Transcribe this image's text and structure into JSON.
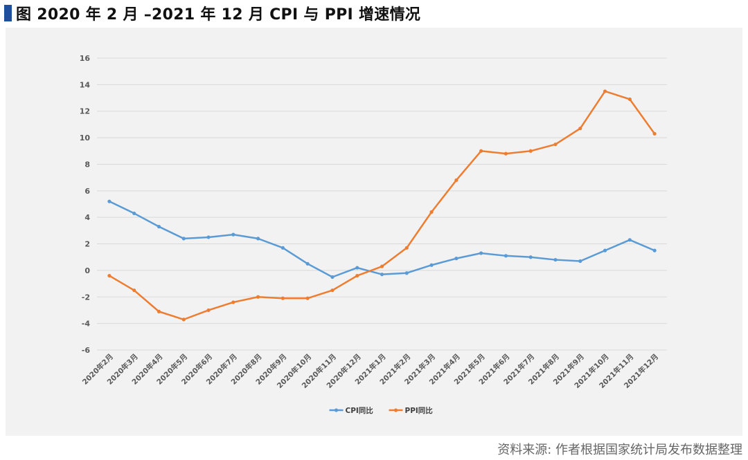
{
  "title": "图 2020 年 2 月 –2021 年 12 月 CPI 与 PPI 增速情况",
  "source": "资料来源: 作者根据国家统计局发布数据整理",
  "colors": {
    "title_bar": "#1f4e9c",
    "cpi": "#5b9bd5",
    "ppi": "#ed7d31",
    "grid": "#d9d9d9",
    "panel": "#f2f2f2"
  },
  "chart_data": {
    "type": "line",
    "title": "",
    "xlabel": "",
    "ylabel": "",
    "ylim": [
      -6,
      16
    ],
    "yticks": [
      -6,
      -4,
      -2,
      0,
      2,
      4,
      6,
      8,
      10,
      12,
      14,
      16
    ],
    "grid": true,
    "legend_position": "bottom",
    "categories": [
      "2020年2月",
      "2020年3月",
      "2020年4月",
      "2020年5月",
      "2020年6月",
      "2020年7月",
      "2020年8月",
      "2020年9月",
      "2020年10月",
      "2020年11月",
      "2020年12月",
      "2021年1月",
      "2021年2月",
      "2021年3月",
      "2021年4月",
      "2021年5月",
      "2021年6月",
      "2021年7月",
      "2021年8月",
      "2021年9月",
      "2021年10月",
      "2021年11月",
      "2021年12月"
    ],
    "series": [
      {
        "name": "CPI同比",
        "color": "#5b9bd5",
        "values": [
          5.2,
          4.3,
          3.3,
          2.4,
          2.5,
          2.7,
          2.4,
          1.7,
          0.5,
          -0.5,
          0.2,
          -0.3,
          -0.2,
          0.4,
          0.9,
          1.3,
          1.1,
          1.0,
          0.8,
          0.7,
          1.5,
          2.3,
          1.5
        ]
      },
      {
        "name": "PPI同比",
        "color": "#ed7d31",
        "values": [
          -0.4,
          -1.5,
          -3.1,
          -3.7,
          -3.0,
          -2.4,
          -2.0,
          -2.1,
          -2.1,
          -1.5,
          -0.4,
          0.3,
          1.7,
          4.4,
          6.8,
          9.0,
          8.8,
          9.0,
          9.5,
          10.7,
          13.5,
          12.9,
          10.3
        ]
      }
    ]
  }
}
